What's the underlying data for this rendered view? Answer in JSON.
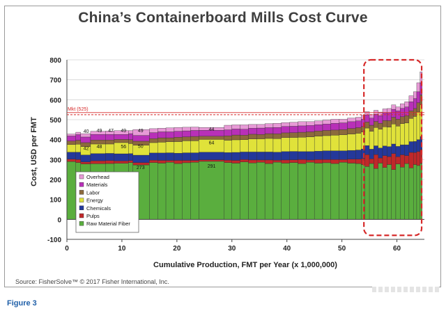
{
  "figure_label": "Figure 3",
  "source_text": "Source: FisherSolve™ © 2017 Fisher International, Inc.",
  "chart_data": {
    "type": "bar",
    "subtype": "stacked-variable-width-cost-curve",
    "title": "China’s Containerboard Mills Cost Curve",
    "xlabel": "Cumulative Production, FMT per Year (x 1,000,000)",
    "ylabel": "Cost, USD per FMT",
    "xlim": [
      0,
      65
    ],
    "ylim": [
      -100,
      800
    ],
    "xticks": [
      0,
      10,
      20,
      30,
      40,
      50,
      60
    ],
    "yticks": [
      -100,
      0,
      100,
      200,
      300,
      400,
      500,
      600,
      700,
      800
    ],
    "grid": true,
    "legend_position": "bottom-left",
    "series": [
      {
        "name": "Raw Material Fiber",
        "color": "#5aae3e"
      },
      {
        "name": "Pulps",
        "color": "#c0282a"
      },
      {
        "name": "Chemicals",
        "color": "#24389a"
      },
      {
        "name": "Energy",
        "color": "#e0e23a"
      },
      {
        "name": "Labor",
        "color": "#8c6a3c"
      },
      {
        "name": "Materials",
        "color": "#b830b8"
      },
      {
        "name": "Overhead",
        "color": "#e79ad6"
      }
    ],
    "reference_line": {
      "label": "Mkt (525)",
      "value": 525,
      "color": "#d62a2a"
    },
    "data_labels": [
      {
        "x": 3.5,
        "y": 445,
        "text": "40"
      },
      {
        "x": 3.5,
        "y": 358,
        "text": "42"
      },
      {
        "x": 5.9,
        "y": 448,
        "text": "49"
      },
      {
        "x": 5.9,
        "y": 368,
        "text": "48"
      },
      {
        "x": 8.0,
        "y": 447,
        "text": "47"
      },
      {
        "x": 10.3,
        "y": 448,
        "text": "49"
      },
      {
        "x": 10.3,
        "y": 367,
        "text": "56"
      },
      {
        "x": 13.4,
        "y": 448,
        "text": "49"
      },
      {
        "x": 13.4,
        "y": 370,
        "text": "50"
      },
      {
        "x": 13.4,
        "y": 262,
        "text": "273"
      },
      {
        "x": 26.3,
        "y": 455,
        "text": "44"
      },
      {
        "x": 26.3,
        "y": 387,
        "text": "64"
      },
      {
        "x": 26.3,
        "y": 270,
        "text": "291"
      }
    ],
    "highlight_box": {
      "x": [
        54,
        64.5
      ],
      "y": [
        -80,
        800
      ],
      "style": "dashed",
      "color": "#d62a2a"
    },
    "bars": [
      {
        "x0": 0.0,
        "x1": 1.6,
        "values": [
          290,
          12,
          35,
          38,
          18,
          25,
          10
        ]
      },
      {
        "x0": 1.6,
        "x1": 2.5,
        "values": [
          285,
          15,
          37,
          40,
          20,
          28,
          12
        ]
      },
      {
        "x0": 2.5,
        "x1": 4.3,
        "values": [
          278,
          10,
          35,
          42,
          20,
          28,
          17
        ]
      },
      {
        "x0": 4.3,
        "x1": 7.0,
        "values": [
          279,
          15,
          36,
          48,
          20,
          28,
          16
        ]
      },
      {
        "x0": 7.0,
        "x1": 8.6,
        "values": [
          280,
          15,
          36,
          47,
          20,
          28,
          17
        ]
      },
      {
        "x0": 8.6,
        "x1": 11.2,
        "values": [
          281,
          12,
          36,
          56,
          16,
          25,
          19
        ]
      },
      {
        "x0": 11.2,
        "x1": 12.0,
        "values": [
          285,
          10,
          35,
          50,
          20,
          30,
          15
        ]
      },
      {
        "x0": 12.0,
        "x1": 15.0,
        "values": [
          273,
          12,
          37,
          50,
          20,
          29,
          29
        ]
      },
      {
        "x0": 15.0,
        "x1": 16.5,
        "values": [
          285,
          12,
          36,
          52,
          20,
          30,
          20
        ]
      },
      {
        "x0": 16.5,
        "x1": 18.0,
        "values": [
          282,
          14,
          37,
          54,
          22,
          30,
          18
        ]
      },
      {
        "x0": 18.0,
        "x1": 19.5,
        "values": [
          286,
          10,
          38,
          55,
          20,
          30,
          20
        ]
      },
      {
        "x0": 19.5,
        "x1": 21.0,
        "values": [
          280,
          16,
          36,
          58,
          22,
          30,
          19
        ]
      },
      {
        "x0": 21.0,
        "x1": 22.5,
        "values": [
          284,
          12,
          38,
          60,
          20,
          30,
          18
        ]
      },
      {
        "x0": 22.5,
        "x1": 24.0,
        "values": [
          286,
          10,
          38,
          60,
          22,
          30,
          17
        ]
      },
      {
        "x0": 24.0,
        "x1": 28.6,
        "values": [
          291,
          8,
          38,
          64,
          16,
          30,
          14
        ]
      },
      {
        "x0": 28.6,
        "x1": 30.0,
        "values": [
          285,
          12,
          38,
          62,
          22,
          30,
          23
        ]
      },
      {
        "x0": 30.0,
        "x1": 31.5,
        "values": [
          282,
          14,
          40,
          63,
          24,
          30,
          21
        ]
      },
      {
        "x0": 31.5,
        "x1": 33.0,
        "values": [
          288,
          12,
          38,
          62,
          22,
          30,
          22
        ]
      },
      {
        "x0": 33.0,
        "x1": 34.5,
        "values": [
          283,
          15,
          40,
          65,
          24,
          30,
          19
        ]
      },
      {
        "x0": 34.5,
        "x1": 36.0,
        "values": [
          286,
          12,
          40,
          66,
          22,
          32,
          18
        ]
      },
      {
        "x0": 36.0,
        "x1": 37.5,
        "values": [
          280,
          18,
          40,
          68,
          24,
          30,
          20
        ]
      },
      {
        "x0": 37.5,
        "x1": 39.0,
        "values": [
          287,
          10,
          40,
          68,
          24,
          32,
          21
        ]
      },
      {
        "x0": 39.0,
        "x1": 40.5,
        "values": [
          282,
          16,
          42,
          70,
          24,
          32,
          19
        ]
      },
      {
        "x0": 40.5,
        "x1": 42.0,
        "values": [
          285,
          14,
          42,
          70,
          24,
          32,
          20
        ]
      },
      {
        "x0": 42.0,
        "x1": 43.5,
        "values": [
          280,
          20,
          40,
          72,
          25,
          32,
          21
        ]
      },
      {
        "x0": 43.5,
        "x1": 45.0,
        "values": [
          286,
          12,
          42,
          74,
          25,
          32,
          19
        ]
      },
      {
        "x0": 45.0,
        "x1": 46.5,
        "values": [
          282,
          18,
          42,
          75,
          26,
          32,
          19
        ]
      },
      {
        "x0": 46.5,
        "x1": 48.0,
        "values": [
          284,
          16,
          44,
          76,
          26,
          32,
          20
        ]
      },
      {
        "x0": 48.0,
        "x1": 49.5,
        "values": [
          280,
          20,
          44,
          78,
          26,
          34,
          20
        ]
      },
      {
        "x0": 49.5,
        "x1": 51.0,
        "values": [
          286,
          14,
          44,
          80,
          26,
          34,
          18
        ]
      },
      {
        "x0": 51.0,
        "x1": 52.5,
        "values": [
          282,
          20,
          44,
          82,
          28,
          34,
          18
        ]
      },
      {
        "x0": 52.5,
        "x1": 53.5,
        "values": [
          280,
          22,
          46,
          84,
          28,
          34,
          18
        ]
      },
      {
        "x0": 53.5,
        "x1": 54.2,
        "values": [
          275,
          30,
          48,
          85,
          28,
          36,
          20
        ]
      },
      {
        "x0": 54.2,
        "x1": 55.0,
        "values": [
          265,
          60,
          45,
          88,
          30,
          36,
          16
        ]
      },
      {
        "x0": 55.0,
        "x1": 55.8,
        "values": [
          280,
          24,
          48,
          90,
          30,
          36,
          18
        ]
      },
      {
        "x0": 55.8,
        "x1": 56.6,
        "values": [
          255,
          70,
          44,
          92,
          30,
          36,
          20
        ]
      },
      {
        "x0": 56.6,
        "x1": 57.4,
        "values": [
          282,
          26,
          50,
          94,
          30,
          38,
          18
        ]
      },
      {
        "x0": 57.4,
        "x1": 58.2,
        "values": [
          260,
          60,
          48,
          96,
          32,
          38,
          20
        ]
      },
      {
        "x0": 58.2,
        "x1": 59.0,
        "values": [
          275,
          40,
          50,
          98,
          32,
          40,
          21
        ]
      },
      {
        "x0": 59.0,
        "x1": 59.8,
        "values": [
          250,
          80,
          48,
          100,
          34,
          40,
          22
        ]
      },
      {
        "x0": 59.8,
        "x1": 60.6,
        "values": [
          278,
          36,
          52,
          102,
          34,
          42,
          20
        ]
      },
      {
        "x0": 60.6,
        "x1": 61.4,
        "values": [
          262,
          62,
          50,
          106,
          35,
          42,
          23
        ]
      },
      {
        "x0": 61.4,
        "x1": 62.2,
        "values": [
          280,
          40,
          54,
          110,
          36,
          44,
          26
        ]
      },
      {
        "x0": 62.2,
        "x1": 63.0,
        "values": [
          258,
          78,
          54,
          116,
          38,
          46,
          30
        ]
      },
      {
        "x0": 63.0,
        "x1": 63.6,
        "values": [
          275,
          60,
          56,
          125,
          40,
          50,
          34
        ]
      },
      {
        "x0": 63.6,
        "x1": 64.2,
        "values": [
          270,
          70,
          60,
          140,
          45,
          55,
          45
        ]
      },
      {
        "x0": 64.2,
        "x1": 64.6,
        "values": [
          280,
          70,
          65,
          160,
          50,
          60,
          55
        ]
      }
    ]
  }
}
